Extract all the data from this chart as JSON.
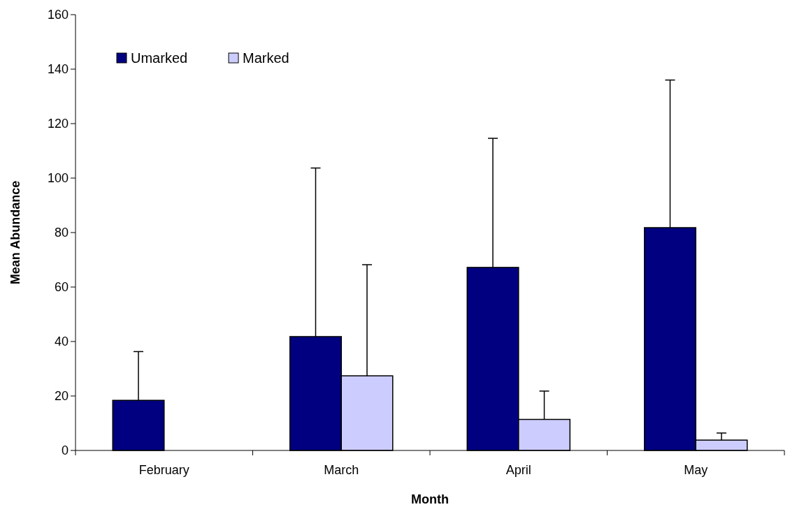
{
  "chart_data": {
    "type": "bar",
    "xlabel": "Month",
    "ylabel": "Mean Abundance",
    "categories": [
      "February",
      "March",
      "April",
      "May"
    ],
    "series": [
      {
        "name": "Umarked",
        "color": "#000080",
        "values": [
          18.4,
          41.8,
          67.2,
          81.8
        ],
        "errors": [
          [
            18.4,
            36.3
          ],
          [
            41.8,
            103.7
          ],
          [
            67.2,
            114.6
          ],
          [
            81.8,
            136.0
          ]
        ]
      },
      {
        "name": "Marked",
        "color": "#ccccff",
        "values": [
          0,
          27.4,
          11.4,
          3.8
        ],
        "errors": [
          null,
          [
            27.4,
            68.2
          ],
          [
            11.4,
            21.8
          ],
          [
            3.8,
            6.4
          ]
        ]
      }
    ],
    "ylim": [
      0,
      160
    ],
    "yticks": [
      0,
      20,
      40,
      60,
      80,
      100,
      120,
      140,
      160
    ],
    "grid": false,
    "legend": "top left"
  }
}
